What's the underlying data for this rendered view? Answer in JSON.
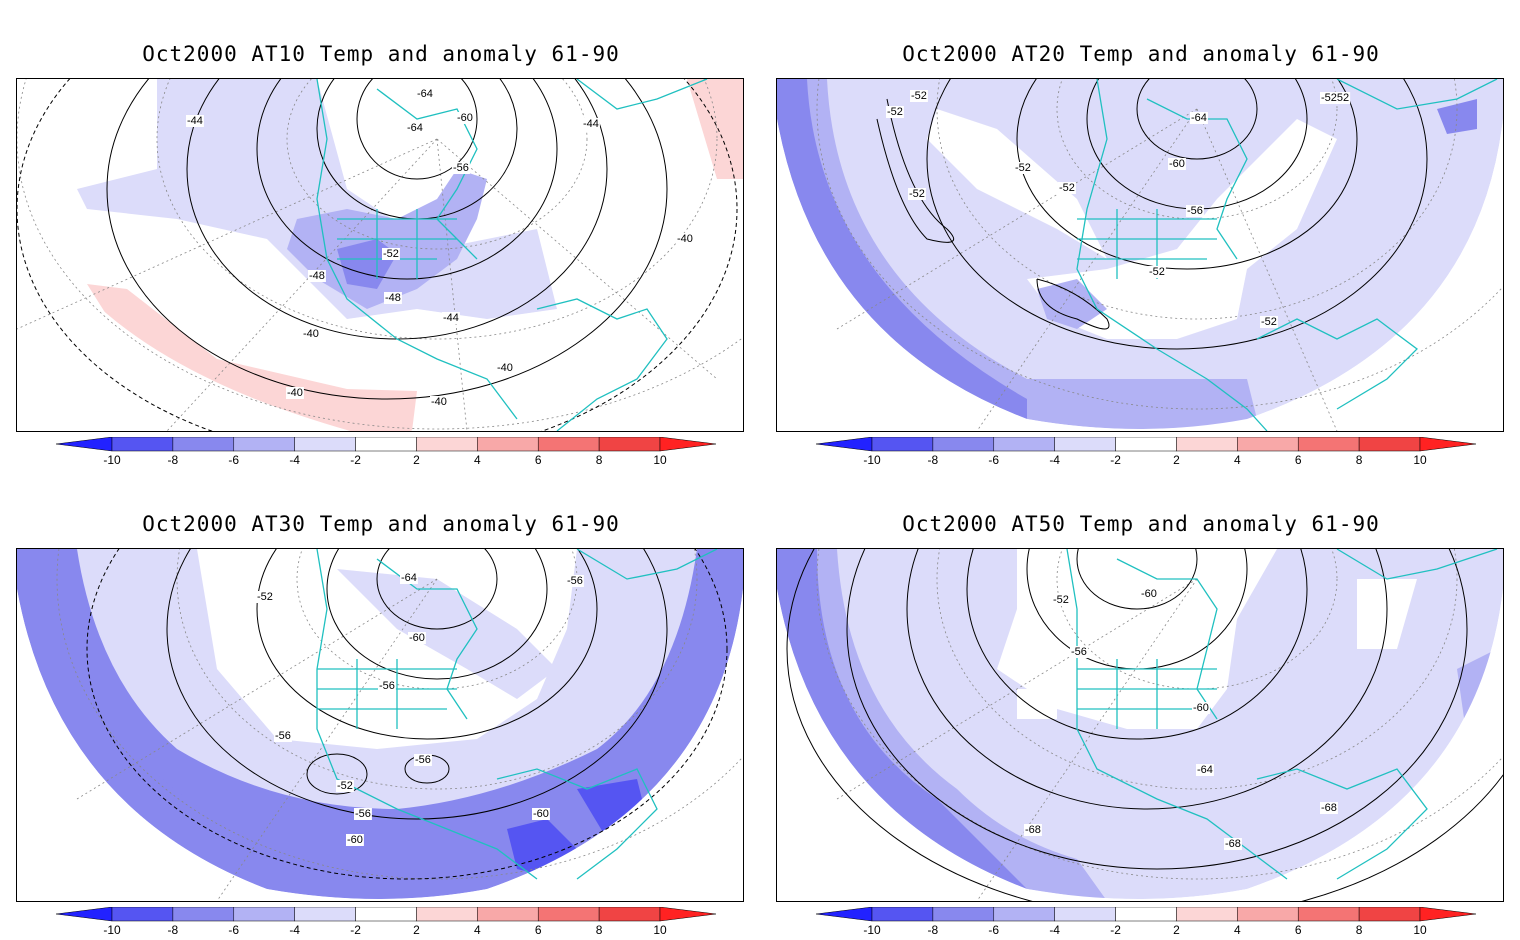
{
  "panels": [
    {
      "title": "Oct2000 AT10 Temp and anomaly 61-90",
      "contour_labels": [
        "-64",
        "-60",
        "-64",
        "-56",
        "-44",
        "-44",
        "-52",
        "-48",
        "-48",
        "-44",
        "-40",
        "-40",
        "-40",
        "-40",
        "-40"
      ]
    },
    {
      "title": "Oct2000 AT20 Temp and anomaly 61-90",
      "contour_labels": [
        "-52",
        "-52",
        "-64",
        "-52",
        "-52",
        "-60",
        "-56",
        "-52",
        "-52",
        "-52",
        "-5252"
      ]
    },
    {
      "title": "Oct2000 AT30 Temp and anomaly 61-90",
      "contour_labels": [
        "-64",
        "-52",
        "-60",
        "-56",
        "-56",
        "-56",
        "-56",
        "-52",
        "-56",
        "-60",
        "-60"
      ]
    },
    {
      "title": "Oct2000 AT50 Temp and anomaly 61-90",
      "contour_labels": [
        "-60",
        "-52",
        "-56",
        "-60",
        "-64",
        "-68",
        "-68",
        "-68"
      ]
    }
  ],
  "colorbar": {
    "tick_labels": [
      "-10",
      "-8",
      "-6",
      "-4",
      "-2",
      "2",
      "4",
      "6",
      "8",
      "10"
    ],
    "colors": [
      "#2222ff",
      "#5555f2",
      "#8888ee",
      "#b2b2f4",
      "#dcdcfa",
      "#ffffff",
      "#fcd6d6",
      "#f8a8a8",
      "#f47474",
      "#f04444",
      "#ff2222"
    ]
  },
  "colors": {
    "coastline": "#20c0c0",
    "contour": "#000000",
    "anomaly_blue_light": "#dcdcfa",
    "anomaly_blue_mid": "#b2b2f4",
    "anomaly_blue_dark": "#8888ee",
    "anomaly_blue_darkest": "#5555f2",
    "anomaly_red_light": "#fcd6d6"
  }
}
